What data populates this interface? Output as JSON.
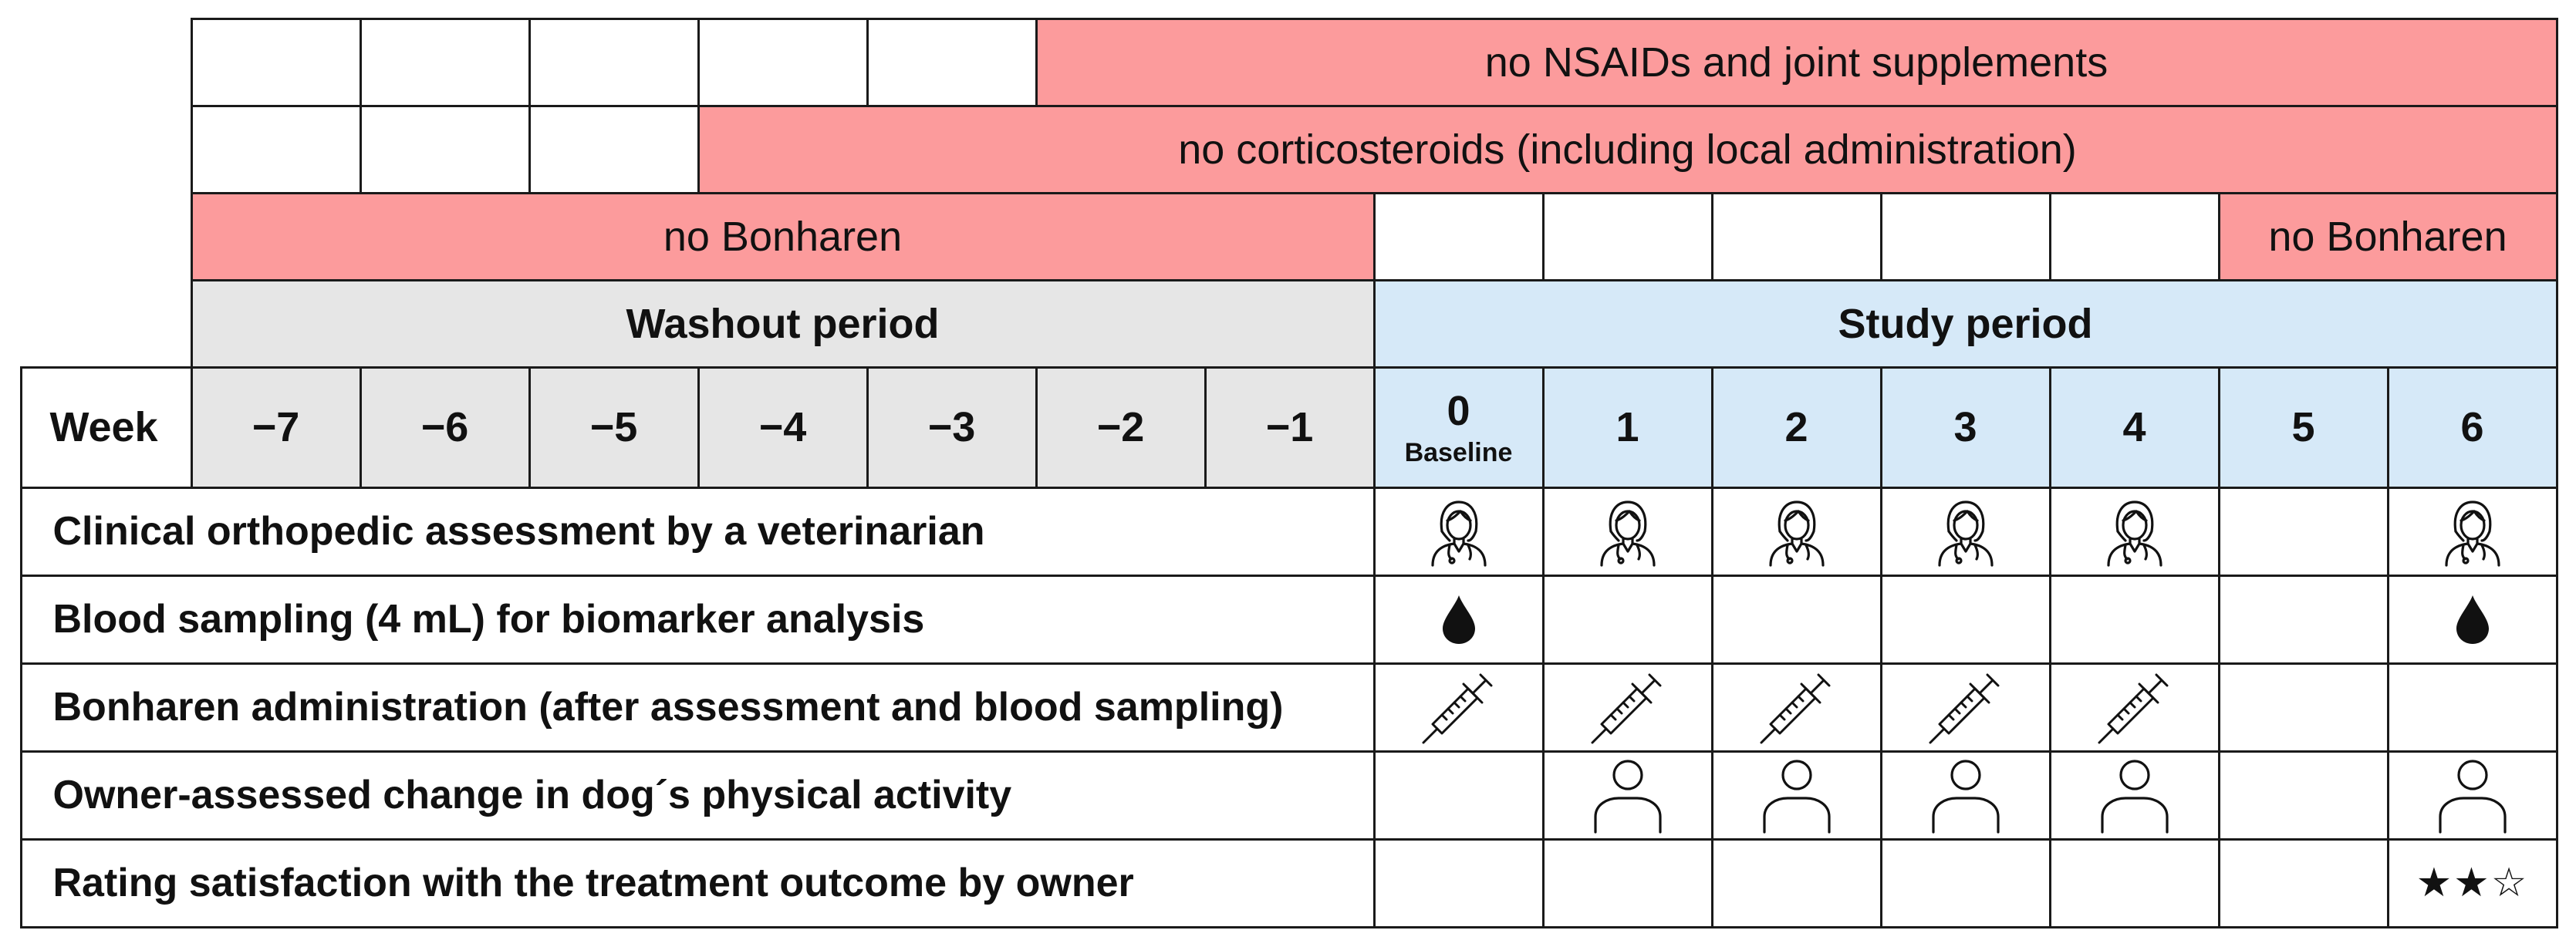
{
  "restrictions": {
    "nsaids": "no NSAIDs and joint supplements",
    "corticosteroids": "no corticosteroids (including local administration)",
    "bonharen_washout": "no Bonharen",
    "bonharen_end": "no Bonharen"
  },
  "phases": {
    "washout": "Washout period",
    "study": "Study period"
  },
  "week_label": "Week",
  "weeks": [
    "−7",
    "−6",
    "−5",
    "−4",
    "−3",
    "−2",
    "−1",
    "0",
    "1",
    "2",
    "3",
    "4",
    "5",
    "6"
  ],
  "baseline_label": "Baseline",
  "activities": [
    {
      "label": "Clinical orthopedic assessment by a veterinarian",
      "icon": "veterinarian-icon",
      "weeks": [
        "0",
        "1",
        "2",
        "3",
        "4",
        "6"
      ]
    },
    {
      "label": "Blood sampling (4 mL) for biomarker analysis",
      "icon": "blood-drop-icon",
      "weeks": [
        "0",
        "6"
      ]
    },
    {
      "label": "Bonharen administration (after assessment and blood sampling)",
      "icon": "syringe-icon",
      "weeks": [
        "0",
        "1",
        "2",
        "3",
        "4"
      ]
    },
    {
      "label": "Owner-assessed change in dog´s physical activity",
      "icon": "person-icon",
      "weeks": [
        "1",
        "2",
        "3",
        "4",
        "6"
      ]
    },
    {
      "label": "Rating satisfaction with the treatment outcome by owner",
      "icon": "stars-icon",
      "weeks": [
        "6"
      ]
    }
  ],
  "stars_text": "★★☆",
  "colors": {
    "restriction": "#fc9b9c",
    "washout": "#e6e6e6",
    "study": "#d6e9f8"
  }
}
